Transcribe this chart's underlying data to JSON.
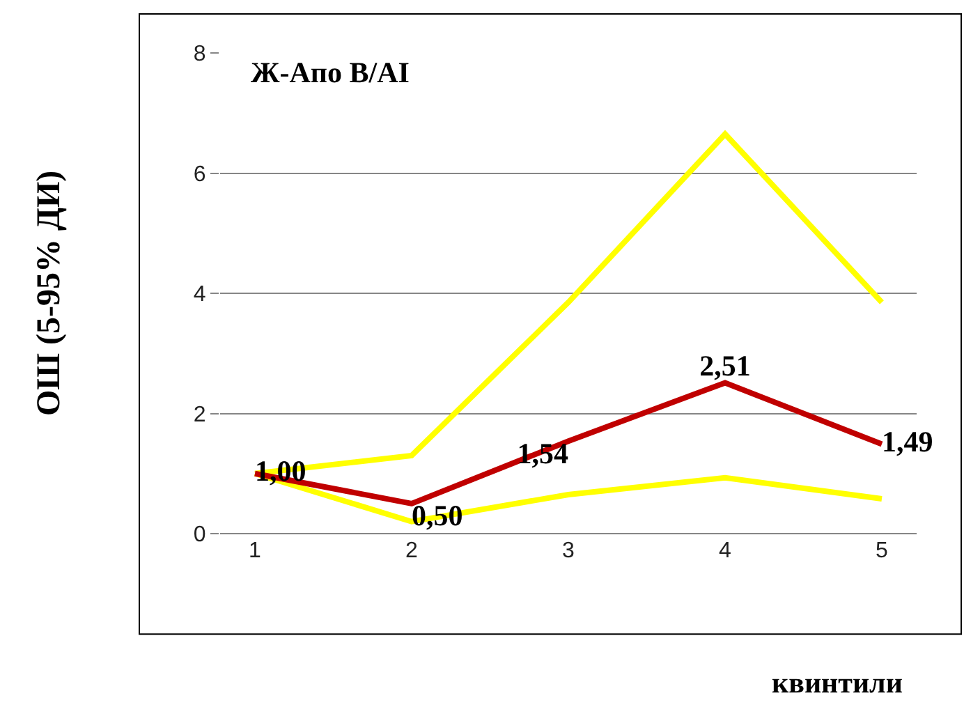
{
  "chart_data": {
    "type": "line",
    "xlabel": "квинтили",
    "ylabel": "ОШ (5-95% ДИ)",
    "annotations": [
      "Ж-Апо B/AI"
    ],
    "categories": [
      "1",
      "2",
      "3",
      "4",
      "5"
    ],
    "series": [
      {
        "color": "#ffff00",
        "values": [
          1,
          1.3,
          3.85,
          6.65,
          3.85
        ]
      },
      {
        "color": "#ffff00",
        "values": [
          1,
          0.2,
          0.65,
          0.93,
          0.58
        ]
      },
      {
        "color": "#c00000",
        "values": [
          1.0,
          0.5,
          1.54,
          2.51,
          1.49
        ],
        "value_labels": [
          "1,00",
          "0,50",
          "1,54",
          "2,51",
          "1,49"
        ]
      }
    ],
    "ylim": [
      0,
      8
    ],
    "yticks": [
      0,
      2,
      4,
      6,
      8
    ],
    "grid": "y",
    "marker": "none",
    "line_style": "solid"
  }
}
